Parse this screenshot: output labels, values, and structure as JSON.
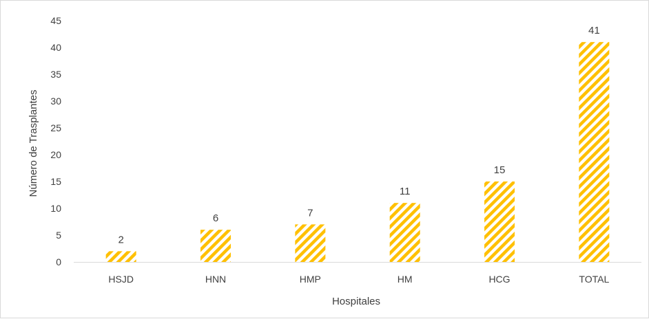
{
  "chart_data": {
    "type": "bar",
    "title": "",
    "xlabel": "Hospitales",
    "ylabel": "Número de Trasplantes",
    "categories": [
      "HSJD",
      "HNN",
      "HMP",
      "HM",
      "HCG",
      "TOTAL"
    ],
    "values": [
      2,
      6,
      7,
      11,
      15,
      41
    ],
    "data_labels": [
      "2",
      "6",
      "7",
      "11",
      "15",
      "41"
    ],
    "ylim": [
      0,
      45
    ],
    "yticks": [
      0,
      5,
      10,
      15,
      20,
      25,
      30,
      35,
      40,
      45
    ],
    "grid": false,
    "legend": "none",
    "bar_color": "#FFC000",
    "bar_pattern": "diagonal-stripes"
  }
}
